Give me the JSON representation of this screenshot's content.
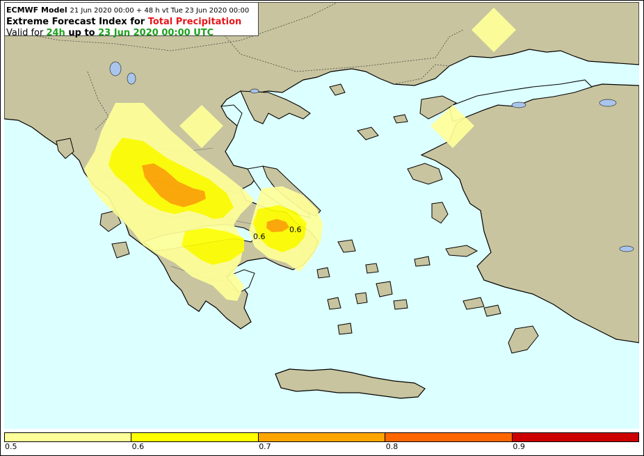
{
  "header": {
    "model": "ECMWF Model",
    "run_info": "21 Jun 2020 00:00 + 48 h vt Tue 23 Jun 2020 00:00",
    "title_prefix": "Extreme Forecast Index for ",
    "parameter": "Total Precipitation",
    "valid_prefix": "Valid for ",
    "period": "24h",
    "up_to": " up to ",
    "valid_time": "23 Jun 2020 00:00 UTC"
  },
  "colorbar": {
    "colors": [
      "#ffff99",
      "#ffff00",
      "#ffa500",
      "#ff6600",
      "#cc0000"
    ],
    "tick_labels": [
      "0.5",
      "0.6",
      "0.7",
      "0.8",
      "0.9"
    ]
  },
  "contour_labels": [
    "0.6",
    "0.6"
  ],
  "colors": {
    "sea": "#dcffff",
    "land": "#c8c49f",
    "lake": "#a9c5ec"
  }
}
